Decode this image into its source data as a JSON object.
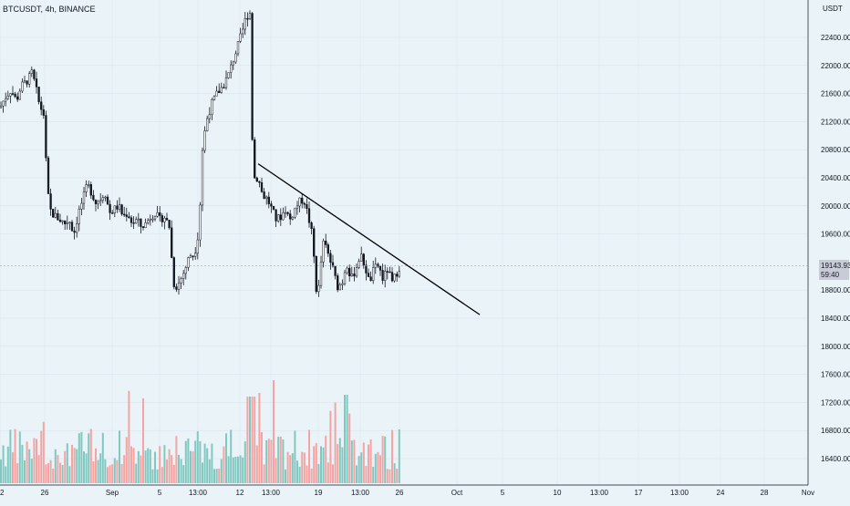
{
  "header": {
    "symbol_legend": "BTCUSDT, 4h, BINANCE"
  },
  "chart_data": {
    "type": "candlestick",
    "symbol": "BTCUSDT",
    "interval": "4h",
    "exchange": "BINANCE",
    "currency_label": "USDT",
    "y_ticks": [
      "22400.00",
      "22000.00",
      "21600.00",
      "21200.00",
      "20800.00",
      "20400.00",
      "20000.00",
      "19600.00",
      "18800.00",
      "18400.00",
      "18000.00",
      "17600.00",
      "17200.00",
      "16800.00",
      "16400.00"
    ],
    "y_tick_values": [
      22400,
      22000,
      21600,
      21200,
      20800,
      20400,
      20000,
      19600,
      18800,
      18400,
      18000,
      17600,
      17200,
      16800,
      16400
    ],
    "ylim": [
      16200,
      23200
    ],
    "x_ticks": [
      "2",
      "26",
      "Sep",
      "5",
      "13:00",
      "12",
      "13:00",
      "19",
      "13:00",
      "26",
      "Oct",
      "5",
      "10",
      "13:00",
      "17",
      "13:00",
      "24",
      "28",
      "Nov"
    ],
    "current_price": "19143.93",
    "countdown": "59:40",
    "colors": {
      "up": "#26a69a",
      "down": "#ef5350",
      "candle": "#131722",
      "volume_up": "#81c8c0",
      "volume_down": "#f4a4a2",
      "grid": "#d6e1ea",
      "trendline": "#000000",
      "price_label_bg": "#c8ccd6"
    },
    "anchors": [
      [
        0,
        21400
      ],
      [
        6,
        21550
      ],
      [
        12,
        21650
      ],
      [
        18,
        21500
      ],
      [
        23,
        21700
      ],
      [
        27,
        21750
      ],
      [
        31,
        21800
      ],
      [
        35,
        21900
      ],
      [
        39,
        21700
      ],
      [
        43,
        21450
      ],
      [
        48,
        21300
      ],
      [
        52,
        20200
      ],
      [
        56,
        19900
      ],
      [
        61,
        19850
      ],
      [
        66,
        19800
      ],
      [
        71,
        19750
      ],
      [
        76,
        19800
      ],
      [
        81,
        19600
      ],
      [
        86,
        19900
      ],
      [
        91,
        20100
      ],
      [
        96,
        20300
      ],
      [
        100,
        20200
      ],
      [
        105,
        20050
      ],
      [
        110,
        20100
      ],
      [
        115,
        20200
      ],
      [
        120,
        19900
      ],
      [
        125,
        19950
      ],
      [
        130,
        20000
      ],
      [
        135,
        19850
      ],
      [
        140,
        19900
      ],
      [
        145,
        19750
      ],
      [
        150,
        19800
      ],
      [
        155,
        19700
      ],
      [
        160,
        19750
      ],
      [
        165,
        19850
      ],
      [
        170,
        19900
      ],
      [
        175,
        19800
      ],
      [
        180,
        19850
      ],
      [
        186,
        19700
      ],
      [
        190,
        18900
      ],
      [
        194,
        18850
      ],
      [
        198,
        18950
      ],
      [
        203,
        19100
      ],
      [
        208,
        19300
      ],
      [
        213,
        19300
      ],
      [
        218,
        19650
      ],
      [
        220,
        20200
      ],
      [
        222,
        20800
      ],
      [
        226,
        21200
      ],
      [
        232,
        21450
      ],
      [
        238,
        21600
      ],
      [
        244,
        21700
      ],
      [
        250,
        21850
      ],
      [
        255,
        22050
      ],
      [
        260,
        22250
      ],
      [
        265,
        22450
      ],
      [
        270,
        22700
      ],
      [
        274,
        22750
      ],
      [
        277,
        20700
      ],
      [
        279,
        20400
      ],
      [
        283,
        20400
      ],
      [
        288,
        20150
      ],
      [
        293,
        20100
      ],
      [
        298,
        19950
      ],
      [
        303,
        19800
      ],
      [
        308,
        19850
      ],
      [
        313,
        19950
      ],
      [
        318,
        19800
      ],
      [
        323,
        19950
      ],
      [
        328,
        20050
      ],
      [
        333,
        20100
      ],
      [
        338,
        19850
      ],
      [
        342,
        19600
      ],
      [
        345,
        19150
      ],
      [
        348,
        18600
      ],
      [
        351,
        19100
      ],
      [
        355,
        19500
      ],
      [
        360,
        19300
      ],
      [
        365,
        19100
      ],
      [
        370,
        18850
      ],
      [
        375,
        18900
      ],
      [
        380,
        19200
      ],
      [
        385,
        18950
      ],
      [
        390,
        19100
      ],
      [
        395,
        19300
      ],
      [
        400,
        19150
      ],
      [
        405,
        18900
      ],
      [
        410,
        19100
      ],
      [
        415,
        19150
      ],
      [
        420,
        18950
      ],
      [
        425,
        19100
      ],
      [
        430,
        18900
      ],
      [
        435,
        19050
      ],
      [
        439,
        19150
      ]
    ],
    "trendline": {
      "from": [
        283,
        20600
      ],
      "to": [
        526,
        18450
      ]
    },
    "volume_max": 17800
  }
}
